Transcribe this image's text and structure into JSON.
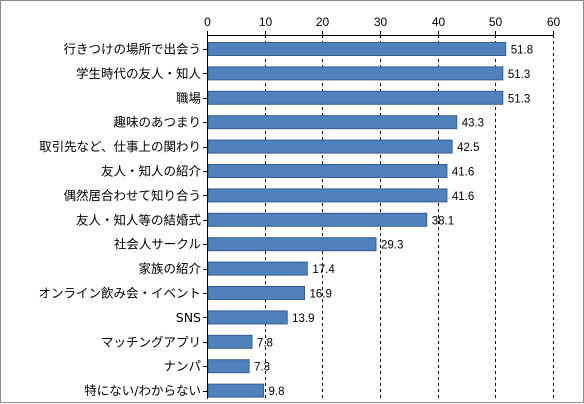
{
  "chart_data": {
    "type": "bar",
    "orientation": "horizontal",
    "title": "",
    "xlabel": "",
    "ylabel": "",
    "xlim": [
      0,
      60
    ],
    "ticks": [
      0,
      10,
      20,
      30,
      40,
      50,
      60
    ],
    "tick_position": "top",
    "grid": "vertical dashed",
    "bar_color": "#4f81bd",
    "bar_edge_color": "#385d8a",
    "categories": [
      "行きつけの場所で出会う",
      "学生時代の友人・知人",
      "職場",
      "趣味のあつまり",
      "取引先など、仕事上の関わり",
      "友人・知人の紹介",
      "偶然居合わせて知り合う",
      "友人・知人等の結婚式",
      "社会人サークル",
      "家族の紹介",
      "オンライン飲み会・イベント",
      "SNS",
      "マッチングアプリ",
      "ナンパ",
      "特にない/わからない"
    ],
    "values": [
      51.8,
      51.3,
      51.3,
      43.3,
      42.5,
      41.6,
      41.6,
      38.1,
      29.3,
      17.4,
      16.9,
      13.9,
      7.8,
      7.3,
      9.8
    ]
  }
}
